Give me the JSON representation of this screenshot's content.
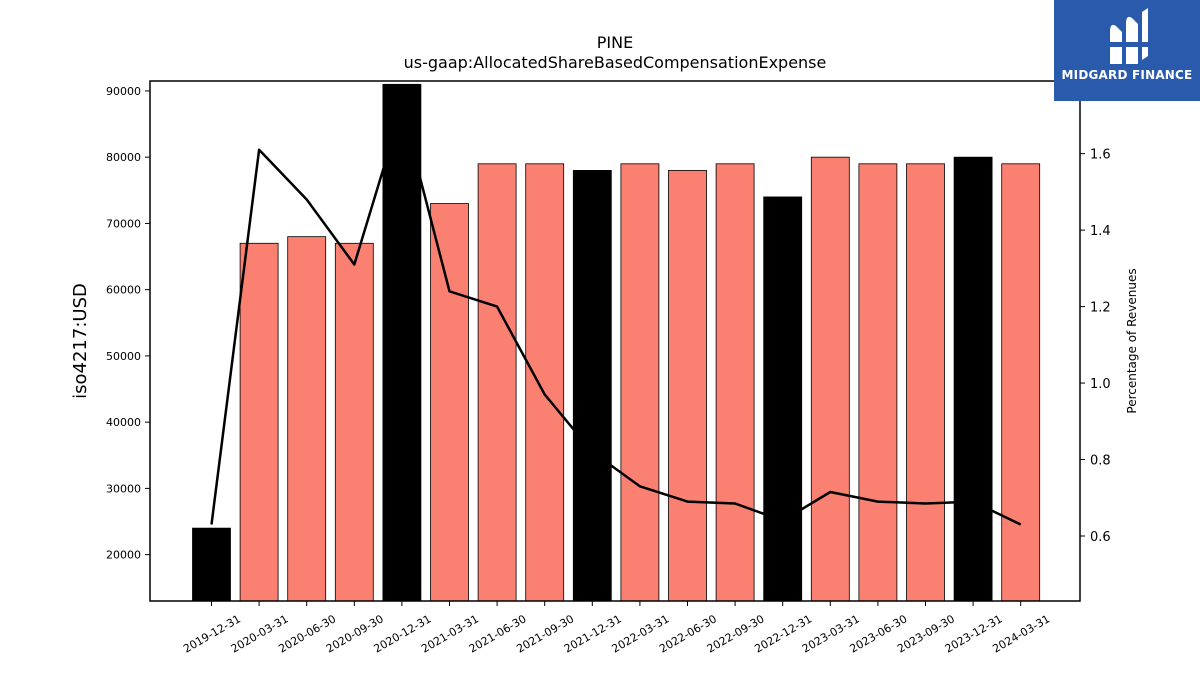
{
  "chart_data": {
    "type": "bar",
    "title": "PINE",
    "subtitle": "us-gaap:AllocatedShareBasedCompensationExpense",
    "ylabel": "iso4217:USD",
    "y2label": "Percentage of Revenues",
    "categories": [
      "2019-12-31",
      "2020-03-31",
      "2020-06-30",
      "2020-09-30",
      "2020-12-31",
      "2021-03-31",
      "2021-06-30",
      "2021-09-30",
      "2021-12-31",
      "2022-03-31",
      "2022-06-30",
      "2022-09-30",
      "2022-12-31",
      "2023-03-31",
      "2023-06-30",
      "2023-09-30",
      "2023-12-31",
      "2024-03-31"
    ],
    "series": [
      {
        "values": [
          24000,
          67000,
          68000,
          67000,
          91000,
          73000,
          79000,
          79000,
          78000,
          79000,
          78000,
          79000,
          74000,
          80000,
          79000,
          79000,
          80000,
          79000
        ],
        "colors": [
          "#000000",
          "#fa8072",
          "#fa8072",
          "#fa8072",
          "#000000",
          "#fa8072",
          "#fa8072",
          "#fa8072",
          "#000000",
          "#fa8072",
          "#fa8072",
          "#fa8072",
          "#000000",
          "#fa8072",
          "#fa8072",
          "#fa8072",
          "#000000",
          "#fa8072"
        ]
      },
      {
        "axis": "right",
        "values": [
          0.63,
          1.61,
          1.48,
          1.31,
          1.72,
          1.24,
          1.2,
          0.97,
          0.82,
          0.73,
          0.69,
          0.685,
          0.64,
          0.715,
          0.69,
          0.685,
          0.69,
          0.63
        ],
        "color": "#000000"
      }
    ],
    "ylim": [
      13000,
      91500
    ],
    "y2lim": [
      0.43,
      1.79
    ],
    "yticks": [
      20000,
      30000,
      40000,
      50000,
      60000,
      70000,
      80000,
      90000
    ],
    "y2ticks": [
      0.6,
      0.8,
      1.0,
      1.2,
      1.4,
      1.6
    ],
    "y2tick_labels": [
      "0.6",
      "0.8",
      "1.0",
      "1.2",
      "1.4",
      "1.6"
    ],
    "grid": false
  },
  "logo": {
    "text": "MIDGARD FINANCE"
  }
}
